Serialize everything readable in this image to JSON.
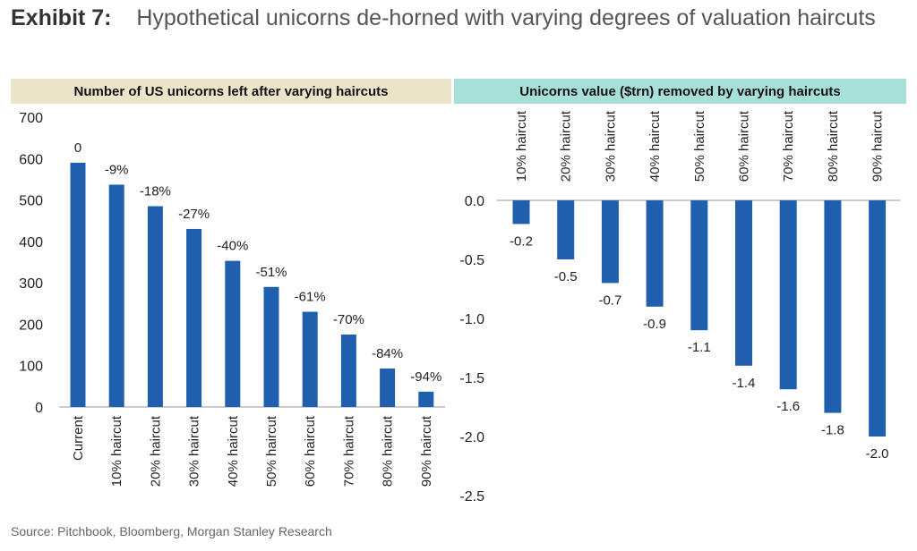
{
  "exhibit": {
    "label": "Exhibit 7:",
    "title": "Hypothetical unicorns de-horned with varying degrees of valuation haircuts"
  },
  "source": "Source: Pitchbook, Bloomberg, Morgan Stanley Research",
  "colors": {
    "bar": "#1f5fad",
    "header_left": "#ece4c9",
    "header_right": "#a6e0d9"
  },
  "chart_data": [
    {
      "type": "bar",
      "title": "Number of US unicorns left after varying haircuts",
      "categories": [
        "Current",
        "10% haircut",
        "20% haircut",
        "30% haircut",
        "40% haircut",
        "50% haircut",
        "60% haircut",
        "70% haircut",
        "80% haircut",
        "90% haircut"
      ],
      "values": [
        590,
        537,
        485,
        430,
        353,
        290,
        230,
        175,
        93,
        37
      ],
      "data_labels": [
        "0",
        "-9%",
        "-18%",
        "-27%",
        "-40%",
        "-51%",
        "-61%",
        "-70%",
        "-84%",
        "-94%"
      ],
      "ylim": [
        0,
        700
      ],
      "yticks": [
        "0",
        "100",
        "200",
        "300",
        "400",
        "500",
        "600",
        "700"
      ],
      "xlabel": "",
      "ylabel": ""
    },
    {
      "type": "bar",
      "title": "Unicorns value ($trn) removed by varying haircuts",
      "categories": [
        "10% haircut",
        "20% haircut",
        "30% haircut",
        "40% haircut",
        "50% haircut",
        "60% haircut",
        "70% haircut",
        "80% haircut",
        "90% haircut"
      ],
      "values": [
        -0.2,
        -0.5,
        -0.7,
        -0.9,
        -1.1,
        -1.4,
        -1.6,
        -1.8,
        -2.0
      ],
      "data_labels": [
        "-0.2",
        "-0.5",
        "-0.7",
        "-0.9",
        "-1.1",
        "-1.4",
        "-1.6",
        "-1.8",
        "-2.0"
      ],
      "ylim": [
        -2.5,
        0.0
      ],
      "yticks": [
        "0.0",
        "-0.5",
        "-1.0",
        "-1.5",
        "-2.0",
        "-2.5"
      ],
      "xlabel": "",
      "ylabel": ""
    }
  ]
}
